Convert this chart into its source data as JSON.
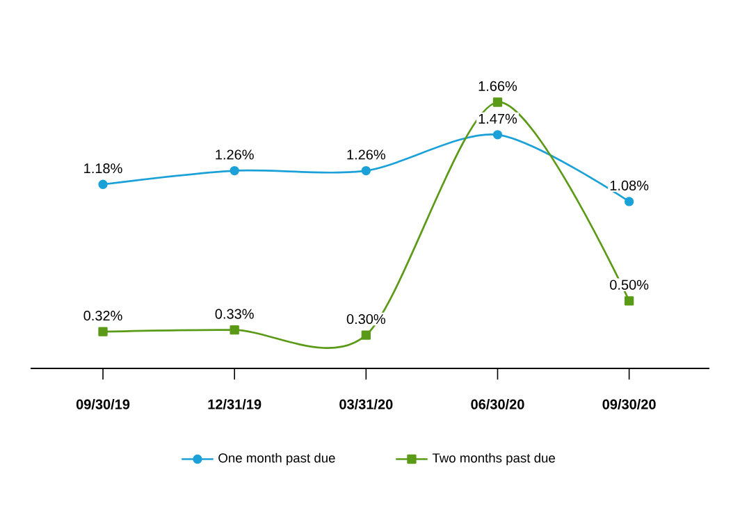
{
  "chart_data": {
    "type": "line",
    "categories": [
      "09/30/19",
      "12/31/19",
      "03/31/20",
      "06/30/20",
      "09/30/20"
    ],
    "series": [
      {
        "name": "One month past due",
        "color": "#1ba1d8",
        "marker": "circle",
        "values": [
          1.18,
          1.26,
          1.26,
          1.47,
          1.08
        ],
        "value_labels": [
          "1.18%",
          "1.26%",
          "1.26%",
          "1.47%",
          "1.08%"
        ]
      },
      {
        "name": "Two months past due",
        "color": "#5a9a16",
        "marker": "square",
        "values": [
          0.32,
          0.33,
          0.3,
          1.66,
          0.5
        ],
        "value_labels": [
          "0.32%",
          "0.33%",
          "0.30%",
          "1.66%",
          "0.50%"
        ]
      }
    ],
    "legend": "bottom",
    "line_style": "solid"
  }
}
